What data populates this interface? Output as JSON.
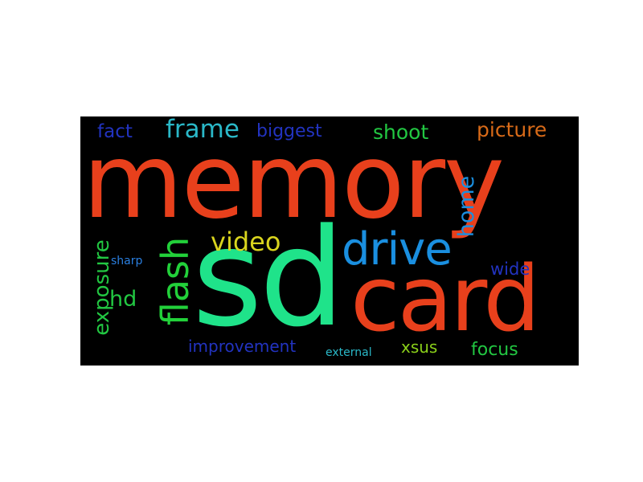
{
  "word_cloud": {
    "background": "#000000",
    "words": [
      {
        "id": "memory",
        "text": "memory",
        "color": "#e8401c",
        "orientation": "horizontal"
      },
      {
        "id": "sd",
        "text": "sd",
        "color": "#1fe38a",
        "orientation": "horizontal"
      },
      {
        "id": "card",
        "text": "card",
        "color": "#e8401c",
        "orientation": "horizontal"
      },
      {
        "id": "drive",
        "text": "drive",
        "color": "#1a8fe0",
        "orientation": "horizontal"
      },
      {
        "id": "flash",
        "text": "flash",
        "color": "#22d13a",
        "orientation": "vertical"
      },
      {
        "id": "video",
        "text": "video",
        "color": "#d9d41e",
        "orientation": "horizontal"
      },
      {
        "id": "home",
        "text": "home",
        "color": "#1a8fe0",
        "orientation": "vertical"
      },
      {
        "id": "exposure",
        "text": "exposure",
        "color": "#22c742",
        "orientation": "vertical"
      },
      {
        "id": "frame",
        "text": "frame",
        "color": "#2ab8c8",
        "orientation": "horizontal"
      },
      {
        "id": "fact",
        "text": "fact",
        "color": "#2233c0",
        "orientation": "horizontal"
      },
      {
        "id": "biggest",
        "text": "biggest",
        "color": "#2233c0",
        "orientation": "horizontal"
      },
      {
        "id": "shoot",
        "text": "shoot",
        "color": "#22c742",
        "orientation": "horizontal"
      },
      {
        "id": "picture",
        "text": "picture",
        "color": "#d86a18",
        "orientation": "horizontal"
      },
      {
        "id": "hd",
        "text": "hd",
        "color": "#22c742",
        "orientation": "horizontal"
      },
      {
        "id": "sharp",
        "text": "sharp",
        "color": "#2a7fe0",
        "orientation": "horizontal"
      },
      {
        "id": "wide",
        "text": "wide",
        "color": "#2233c0",
        "orientation": "horizontal"
      },
      {
        "id": "improvement",
        "text": "improvement",
        "color": "#2233c0",
        "orientation": "horizontal"
      },
      {
        "id": "external",
        "text": "external",
        "color": "#2ab8c8",
        "orientation": "horizontal"
      },
      {
        "id": "xsus",
        "text": "xsus",
        "color": "#8bd11a",
        "orientation": "horizontal"
      },
      {
        "id": "focus",
        "text": "focus",
        "color": "#22c742",
        "orientation": "horizontal"
      }
    ]
  }
}
